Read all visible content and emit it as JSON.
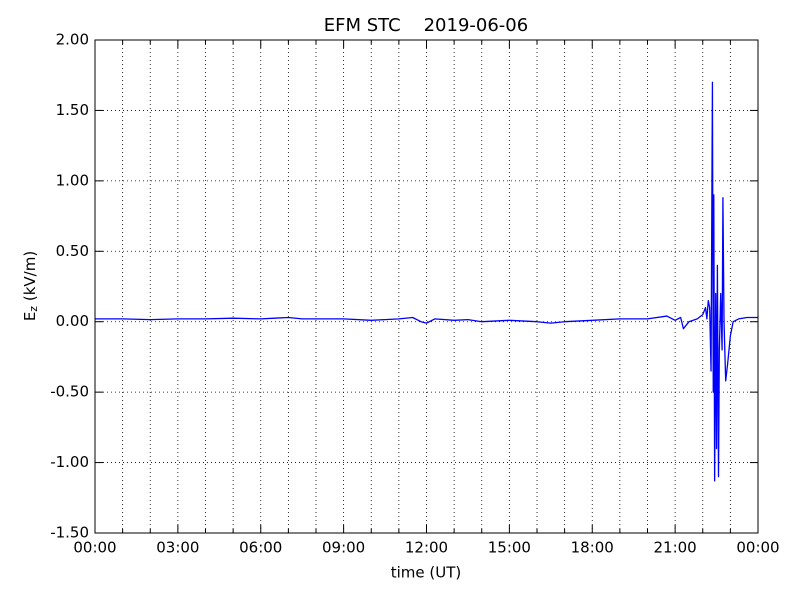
{
  "chart_data": {
    "type": "line",
    "title": "EFM STC    2019-06-06",
    "xlabel": "time (UT)",
    "ylabel": "E",
    "ylabel_sub": "z",
    "ylabel_unit": " (kV/m)",
    "xlim": [
      0,
      24
    ],
    "xticks": [
      {
        "value": 0,
        "label": "00:00"
      },
      {
        "value": 3,
        "label": "03:00"
      },
      {
        "value": 6,
        "label": "06:00"
      },
      {
        "value": 9,
        "label": "09:00"
      },
      {
        "value": 12,
        "label": "12:00"
      },
      {
        "value": 15,
        "label": "15:00"
      },
      {
        "value": 18,
        "label": "18:00"
      },
      {
        "value": 21,
        "label": "21:00"
      },
      {
        "value": 24,
        "label": "00:00"
      }
    ],
    "x_minor_ticks": [
      1,
      2,
      4,
      5,
      7,
      8,
      10,
      11,
      13,
      14,
      16,
      17,
      19,
      20,
      22,
      23
    ],
    "ylim": [
      -1.5,
      2
    ],
    "yticks": [
      {
        "value": -1.5,
        "label": "-1.50"
      },
      {
        "value": -1,
        "label": "-1.00"
      },
      {
        "value": -0.5,
        "label": "-0.50"
      },
      {
        "value": 0,
        "label": "0.00"
      },
      {
        "value": 0.5,
        "label": "0.50"
      },
      {
        "value": 1,
        "label": "1.00"
      },
      {
        "value": 1.5,
        "label": "1.50"
      },
      {
        "value": 2,
        "label": "2.00"
      }
    ],
    "grid": true,
    "series": [
      {
        "color": "#0000ff",
        "x": [
          0,
          1,
          2,
          3,
          4,
          5,
          6,
          6.5,
          7,
          7.5,
          8,
          9,
          10,
          10.5,
          11,
          11.5,
          11.8,
          12,
          12.3,
          13,
          13.5,
          14,
          15,
          16,
          16.5,
          17,
          18,
          19,
          20,
          20.7,
          21,
          21.2,
          21.3,
          21.5,
          21.8,
          22,
          22.1,
          22.15,
          22.2,
          22.25,
          22.3,
          22.35,
          22.38,
          22.4,
          22.43,
          22.47,
          22.5,
          22.53,
          22.57,
          22.6,
          22.65,
          22.7,
          22.73,
          22.77,
          22.83,
          22.9,
          23,
          23.1,
          23.3,
          23.6,
          24
        ],
        "values": [
          0.02,
          0.02,
          0.015,
          0.02,
          0.02,
          0.025,
          0.02,
          0.025,
          0.03,
          0.02,
          0.02,
          0.02,
          0.01,
          0.015,
          0.02,
          0.03,
          0.0,
          -0.01,
          0.02,
          0.01,
          0.015,
          0.0,
          0.01,
          0.0,
          -0.01,
          0.0,
          0.01,
          0.02,
          0.02,
          0.04,
          0.01,
          0.03,
          -0.05,
          0.0,
          0.02,
          0.05,
          0.1,
          0.02,
          0.15,
          0.1,
          -0.35,
          1.7,
          -0.5,
          0.9,
          -1.13,
          0.2,
          -0.9,
          0.4,
          -1.1,
          -0.2,
          0.2,
          -0.2,
          0.88,
          0.0,
          -0.42,
          -0.3,
          -0.1,
          0.0,
          0.02,
          0.03,
          0.03
        ]
      }
    ]
  }
}
